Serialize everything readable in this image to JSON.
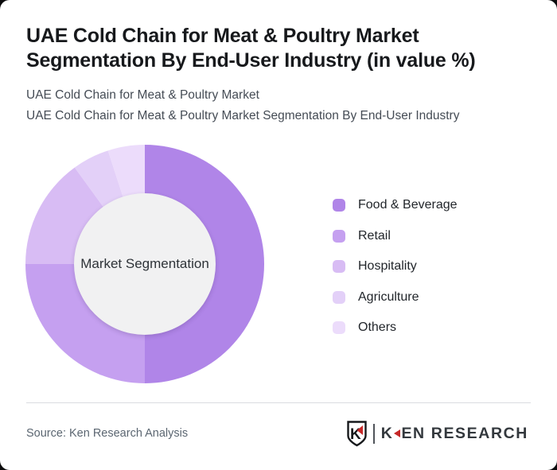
{
  "header": {
    "title": "UAE Cold Chain for Meat & Poultry Market Segmentation By End-User Industry (in value %)",
    "subtitle1": "UAE Cold Chain for Meat & Poultry Market",
    "subtitle2": "UAE Cold Chain for Meat & Poultry Market Segmentation By End-User Industry"
  },
  "chart_data": {
    "type": "pie",
    "variant": "donut",
    "title": "UAE Cold Chain for Meat & Poultry Market Segmentation By End-User Industry (in value %)",
    "center_label": "Market Segmentation",
    "categories": [
      "Food & Beverage",
      "Retail",
      "Hospitality",
      "Agriculture",
      "Others"
    ],
    "values": [
      50,
      25,
      15,
      5,
      5
    ],
    "unit": "percent (estimated from arc angles; no data labels shown)",
    "colors": [
      "#b085e8",
      "#c5a0f0",
      "#d8bcf4",
      "#e3d0f8",
      "#ecdcfb"
    ],
    "hole_color": "#f1f1f2",
    "start_angle_deg": 0,
    "direction": "clockwise",
    "legend_position": "right",
    "grid": false
  },
  "footer": {
    "source": "Source: Ken Research Analysis",
    "logo": {
      "letter_k": "K",
      "rest": "EN RESEARCH",
      "shield_letter": "K",
      "accent_color": "#c62828",
      "text_color": "#33383d"
    }
  }
}
